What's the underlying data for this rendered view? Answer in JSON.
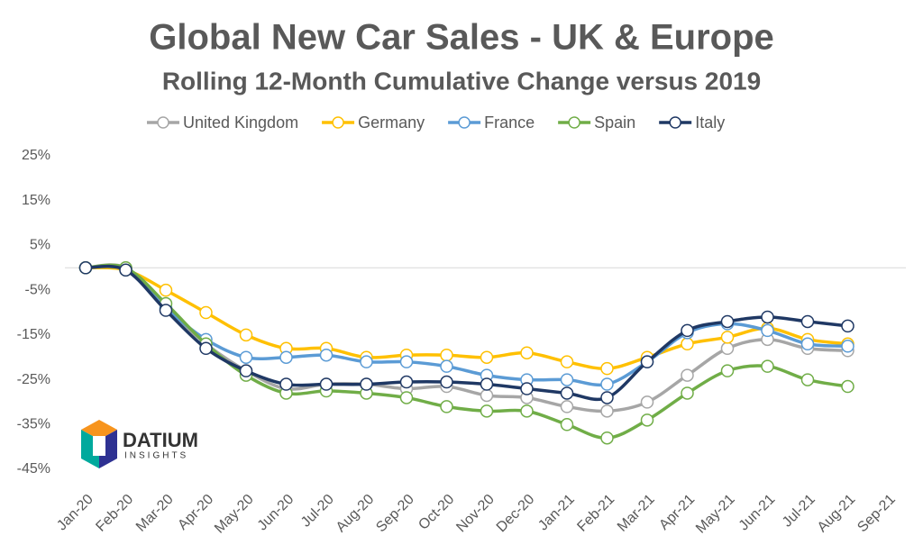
{
  "chart_data": {
    "type": "line",
    "title": "Global New Car Sales - UK & Europe",
    "subtitle": "Rolling 12-Month Cumulative Change versus 2019",
    "categories": [
      "Jan-20",
      "Feb-20",
      "Mar-20",
      "Apr-20",
      "May-20",
      "Jun-20",
      "Jul-20",
      "Aug-20",
      "Sep-20",
      "Oct-20",
      "Nov-20",
      "Dec-20",
      "Jan-21",
      "Feb-21",
      "Mar-21",
      "Apr-21",
      "May-21",
      "Jun-21",
      "Jul-21",
      "Aug-21",
      "Sep-21"
    ],
    "series": [
      {
        "name": "United Kingdom",
        "color": "#a6a6a6",
        "values": [
          0,
          0,
          -9,
          -17,
          -23,
          -27,
          -26,
          -26,
          -27,
          -26.5,
          -28.5,
          -29,
          -31,
          -32,
          -30,
          -24,
          -18,
          -16,
          -18,
          -18.5,
          null
        ]
      },
      {
        "name": "Germany",
        "color": "#ffc000",
        "values": [
          0,
          -0.5,
          -5,
          -10,
          -15,
          -18,
          -18,
          -20,
          -19.5,
          -19.5,
          -20,
          -19,
          -21,
          -22.5,
          -20,
          -17,
          -15.5,
          -13.5,
          -16,
          -17,
          null
        ]
      },
      {
        "name": "France",
        "color": "#5b9bd5",
        "values": [
          0,
          -0.5,
          -9,
          -16,
          -20,
          -20,
          -19.5,
          -21,
          -21,
          -22,
          -24,
          -25,
          -25,
          -26,
          -21,
          -14.5,
          -12.5,
          -14,
          -17,
          -17.5,
          null
        ]
      },
      {
        "name": "Spain",
        "color": "#70ad47",
        "values": [
          0,
          0,
          -8,
          -17,
          -24,
          -28,
          -27.5,
          -28,
          -29,
          -31,
          -32,
          -32,
          -35,
          -38,
          -34,
          -28,
          -23,
          -22,
          -25,
          -26.5,
          null
        ]
      },
      {
        "name": "Italy",
        "color": "#1f3864",
        "values": [
          0,
          -0.5,
          -9.5,
          -18,
          -23,
          -26,
          -26,
          -26,
          -25.5,
          -25.5,
          -26,
          -27,
          -28,
          -29,
          -21,
          -14,
          -12,
          -11,
          -12,
          -13,
          null
        ]
      }
    ],
    "ylim": [
      -45,
      25
    ],
    "yticks": [
      {
        "value": 25,
        "label": "25%"
      },
      {
        "value": 15,
        "label": "15%"
      },
      {
        "value": 5,
        "label": "5%"
      },
      {
        "value": -5,
        "label": "-5%"
      },
      {
        "value": -15,
        "label": "-15%"
      },
      {
        "value": -25,
        "label": "-25%"
      },
      {
        "value": -35,
        "label": "-35%"
      },
      {
        "value": -45,
        "label": "-45%"
      }
    ],
    "legend": "top",
    "logo": {
      "name": "DATIUM",
      "tagline": "INSIGHTS"
    }
  }
}
